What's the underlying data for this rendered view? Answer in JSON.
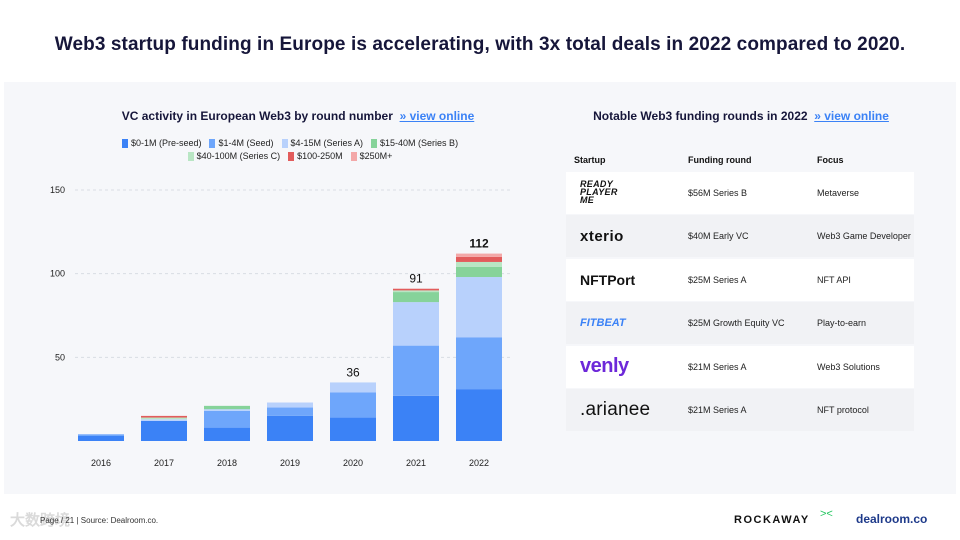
{
  "headline": "Web3 startup funding in Europe is accelerating, with 3x total deals in 2022 compared to 2020.",
  "chart_link": "» view online",
  "table_link": "» view online",
  "legend": [
    {
      "label": "$0-1M (Pre-seed)",
      "color": "#3b82f6"
    },
    {
      "label": "$1-4M (Seed)",
      "color": "#6ea6fb"
    },
    {
      "label": "$4-15M (Series A)",
      "color": "#b8d1fc"
    },
    {
      "label": "$15-40M (Series B)",
      "color": "#86d39a"
    },
    {
      "label": "$40-100M (Series C)",
      "color": "#b9e6c4"
    },
    {
      "label": "$100-250M",
      "color": "#e25c5c"
    },
    {
      "label": "$250M+",
      "color": "#f3a8a8"
    }
  ],
  "chart_data": {
    "type": "bar",
    "stacked": true,
    "title": "VC activity in European Web3 by round number",
    "categories": [
      "2016",
      "2017",
      "2018",
      "2019",
      "2020",
      "2021",
      "2022"
    ],
    "ylim": [
      0,
      150
    ],
    "yticks": [
      50,
      100,
      150
    ],
    "grid": true,
    "legend_position": "top",
    "totals": [
      null,
      null,
      null,
      null,
      36,
      91,
      112
    ],
    "series": [
      {
        "name": "$0-1M (Pre-seed)",
        "values": [
          3,
          12,
          8,
          15,
          14,
          27,
          31
        ]
      },
      {
        "name": "$1-4M (Seed)",
        "values": [
          1,
          0,
          10,
          5,
          15,
          30,
          31
        ]
      },
      {
        "name": "$4-15M (Series A)",
        "values": [
          0,
          1,
          1,
          3,
          6,
          26,
          36
        ]
      },
      {
        "name": "$15-40M (Series B)",
        "values": [
          0,
          0,
          2,
          0,
          0,
          6,
          6
        ]
      },
      {
        "name": "$40-100M (Series C)",
        "values": [
          0,
          1,
          0,
          0,
          0,
          1,
          3
        ]
      },
      {
        "name": "$100-250M",
        "values": [
          0,
          1,
          0,
          0,
          0,
          1,
          3
        ]
      },
      {
        "name": "$250M+",
        "values": [
          0,
          0,
          0,
          0,
          0,
          0,
          2
        ]
      }
    ]
  },
  "table": {
    "title": "Notable Web3 funding rounds in 2022",
    "headers": {
      "startup": "Startup",
      "round": "Funding round",
      "focus": "Focus"
    },
    "rows": [
      {
        "logo": "READY PLAYER ME",
        "round": "$56M Series B",
        "focus": "Metaverse"
      },
      {
        "logo": "xterio",
        "round": "$40M Early VC",
        "focus": "Web3 Game Developer"
      },
      {
        "logo": "NFTPort",
        "round": "$25M Series A",
        "focus": "NFT API"
      },
      {
        "logo": "FITBEAT",
        "round": "$25M Growth Equity VC",
        "focus": "Play-to-earn"
      },
      {
        "logo": "venly",
        "round": "$21M Series A",
        "focus": "Web3 Solutions"
      },
      {
        "logo": ".arianee",
        "round": "$21M Series A",
        "focus": "NFT protocol"
      }
    ]
  },
  "footer": {
    "page": "Page / 21",
    "source": "Source: Dealroom.co.",
    "brand1": "ROCKAWAY",
    "brand2": "dealroom.co",
    "watermark": "大数跨境"
  }
}
